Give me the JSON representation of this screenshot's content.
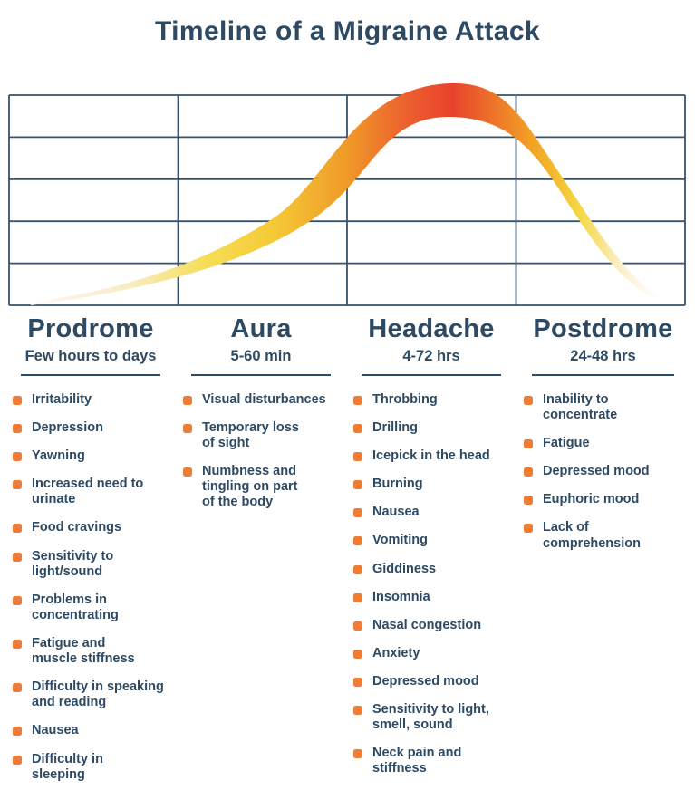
{
  "title": "Timeline of a Migraine Attack",
  "colors": {
    "text": "#2e4a63",
    "grid": "#2e4a63",
    "bullet": "#ef7d35",
    "curve_peak_red": "#e8432c",
    "curve_orange": "#f09b28",
    "curve_yellow": "#f5cb37",
    "curve_tail_white": "#ffffff"
  },
  "curve": {
    "description": "Migraine intensity ribbon rising through Prodrome and Aura, peaking during Headache, falling through Postdrome",
    "gradient_stops": [
      {
        "offset": "0%",
        "color": "#ffffff"
      },
      {
        "offset": "5%",
        "color": "#fcf2e9"
      },
      {
        "offset": "16%",
        "color": "#f8ecc2"
      },
      {
        "offset": "28%",
        "color": "#f6dd55"
      },
      {
        "offset": "38%",
        "color": "#f5cb37"
      },
      {
        "offset": "50%",
        "color": "#f09b28"
      },
      {
        "offset": "60%",
        "color": "#ec5e2e"
      },
      {
        "offset": "67%",
        "color": "#e8432c"
      },
      {
        "offset": "73%",
        "color": "#ed702a"
      },
      {
        "offset": "80%",
        "color": "#f2a526"
      },
      {
        "offset": "87%",
        "color": "#f5d73f"
      },
      {
        "offset": "94%",
        "color": "#fbf1d2"
      },
      {
        "offset": "100%",
        "color": "#ffffff"
      }
    ]
  },
  "phases": [
    {
      "name": "Prodrome",
      "duration": "Few hours to days",
      "symptoms": [
        "Irritability",
        "Depression",
        "Yawning",
        "Increased need to\nurinate",
        "Food cravings",
        "Sensitivity to\nlight/sound",
        "Problems in\nconcentrating",
        "Fatigue and\nmuscle stiffness",
        "Difficulty in speaking\nand reading",
        "Nausea",
        "Difficulty in\nsleeping"
      ]
    },
    {
      "name": "Aura",
      "duration": "5-60 min",
      "symptoms": [
        "Visual disturbances",
        "Temporary loss\nof sight",
        "Numbness and\ntingling on part\nof the body"
      ]
    },
    {
      "name": "Headache",
      "duration": "4-72 hrs",
      "symptoms": [
        "Throbbing",
        "Drilling",
        "Icepick in the head",
        "Burning",
        "Nausea",
        "Vomiting",
        "Giddiness",
        "Insomnia",
        "Nasal congestion",
        "Anxiety",
        "Depressed mood",
        "Sensitivity to light,\nsmell, sound",
        "Neck pain and\nstiffness"
      ]
    },
    {
      "name": "Postdrome",
      "duration": "24-48 hrs",
      "symptoms": [
        "Inability to\nconcentrate",
        "Fatigue",
        "Depressed mood",
        "Euphoric mood",
        "Lack of\ncomprehension"
      ]
    }
  ]
}
